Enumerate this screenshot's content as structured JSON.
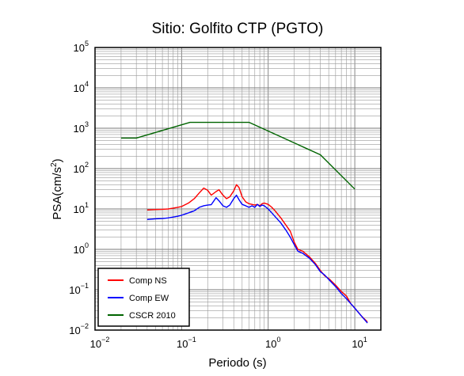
{
  "chart_data": {
    "type": "line",
    "title": "Sitio: Golfito CTP (PGTO)",
    "xlabel": "Periodo (s)",
    "ylabel": {
      "prefix": "PSA(cm/s",
      "superscript": "2",
      "suffix": ")"
    },
    "xscale": "log",
    "yscale": "log",
    "xlim": [
      0.01,
      20
    ],
    "ylim": [
      0.01,
      100000
    ],
    "grid": true,
    "legend_position": "bottom-left",
    "x_ticks": [
      {
        "value": 0.01,
        "base": "10",
        "exp": "−2"
      },
      {
        "value": 0.1,
        "base": "10",
        "exp": "−1"
      },
      {
        "value": 1,
        "base": "10",
        "exp": "0"
      },
      {
        "value": 10,
        "base": "10",
        "exp": "1"
      }
    ],
    "y_ticks": [
      {
        "value": 0.01,
        "base": "10",
        "exp": "−2"
      },
      {
        "value": 0.1,
        "base": "10",
        "exp": "−1"
      },
      {
        "value": 1,
        "base": "10",
        "exp": "0"
      },
      {
        "value": 10,
        "base": "10",
        "exp": "1"
      },
      {
        "value": 100,
        "base": "10",
        "exp": "2"
      },
      {
        "value": 1000,
        "base": "10",
        "exp": "3"
      },
      {
        "value": 10000,
        "base": "10",
        "exp": "4"
      },
      {
        "value": 100000,
        "base": "10",
        "exp": "5"
      }
    ],
    "series": [
      {
        "name": "Comp NS",
        "color": "#ff0000",
        "points": [
          [
            0.04,
            9.5
          ],
          [
            0.05,
            9.7
          ],
          [
            0.06,
            9.8
          ],
          [
            0.07,
            10
          ],
          [
            0.08,
            10.5
          ],
          [
            0.09,
            11
          ],
          [
            0.1,
            11.5
          ],
          [
            0.12,
            14
          ],
          [
            0.14,
            18
          ],
          [
            0.16,
            25
          ],
          [
            0.18,
            33
          ],
          [
            0.2,
            29
          ],
          [
            0.22,
            22
          ],
          [
            0.25,
            27
          ],
          [
            0.27,
            30
          ],
          [
            0.3,
            22
          ],
          [
            0.33,
            18
          ],
          [
            0.36,
            20
          ],
          [
            0.4,
            28
          ],
          [
            0.43,
            40
          ],
          [
            0.46,
            34
          ],
          [
            0.5,
            20
          ],
          [
            0.55,
            15
          ],
          [
            0.6,
            13.5
          ],
          [
            0.7,
            12.5
          ],
          [
            0.75,
            13
          ],
          [
            0.8,
            12
          ],
          [
            0.85,
            13.5
          ],
          [
            0.9,
            14
          ],
          [
            1.0,
            13
          ],
          [
            1.1,
            11
          ],
          [
            1.2,
            9
          ],
          [
            1.4,
            6
          ],
          [
            1.6,
            4
          ],
          [
            1.8,
            2.8
          ],
          [
            2.0,
            1.5
          ],
          [
            2.2,
            1.0
          ],
          [
            2.5,
            0.9
          ],
          [
            3.0,
            0.65
          ],
          [
            3.5,
            0.45
          ],
          [
            4.0,
            0.3
          ],
          [
            4.5,
            0.22
          ],
          [
            5.0,
            0.19
          ],
          [
            6.0,
            0.13
          ],
          [
            7.0,
            0.09
          ],
          [
            8.0,
            0.07
          ],
          [
            9.0,
            0.045
          ],
          [
            10.0,
            0.035
          ],
          [
            12.0,
            0.022
          ],
          [
            14.0,
            0.016
          ]
        ]
      },
      {
        "name": "Comp EW",
        "color": "#0000ff",
        "points": [
          [
            0.04,
            5.5
          ],
          [
            0.05,
            5.7
          ],
          [
            0.06,
            5.8
          ],
          [
            0.07,
            6
          ],
          [
            0.08,
            6.3
          ],
          [
            0.09,
            6.6
          ],
          [
            0.1,
            7
          ],
          [
            0.12,
            8
          ],
          [
            0.14,
            9
          ],
          [
            0.16,
            11
          ],
          [
            0.18,
            12
          ],
          [
            0.2,
            12.5
          ],
          [
            0.22,
            12.8
          ],
          [
            0.25,
            19
          ],
          [
            0.27,
            16
          ],
          [
            0.3,
            12
          ],
          [
            0.33,
            11
          ],
          [
            0.36,
            12.5
          ],
          [
            0.4,
            18
          ],
          [
            0.43,
            22
          ],
          [
            0.46,
            17
          ],
          [
            0.5,
            13
          ],
          [
            0.55,
            12
          ],
          [
            0.6,
            11
          ],
          [
            0.65,
            12
          ],
          [
            0.7,
            11
          ],
          [
            0.75,
            13
          ],
          [
            0.8,
            11.5
          ],
          [
            0.85,
            12.5
          ],
          [
            0.9,
            12
          ],
          [
            1.0,
            10
          ],
          [
            1.1,
            8
          ],
          [
            1.2,
            6.5
          ],
          [
            1.4,
            4.5
          ],
          [
            1.6,
            3
          ],
          [
            1.8,
            2
          ],
          [
            2.0,
            1.3
          ],
          [
            2.2,
            0.9
          ],
          [
            2.5,
            0.8
          ],
          [
            3.0,
            0.6
          ],
          [
            3.5,
            0.42
          ],
          [
            4.0,
            0.28
          ],
          [
            4.5,
            0.23
          ],
          [
            5.0,
            0.18
          ],
          [
            6.0,
            0.12
          ],
          [
            7.0,
            0.08
          ],
          [
            8.0,
            0.06
          ],
          [
            9.0,
            0.045
          ],
          [
            10.0,
            0.035
          ],
          [
            12.0,
            0.022
          ],
          [
            14.0,
            0.015
          ]
        ]
      },
      {
        "name": "CSCR 2010",
        "color": "#006400",
        "points": [
          [
            0.02,
            570
          ],
          [
            0.03,
            570
          ],
          [
            0.125,
            1400
          ],
          [
            0.6,
            1400
          ],
          [
            4.0,
            220
          ],
          [
            10.0,
            31
          ]
        ]
      }
    ]
  }
}
